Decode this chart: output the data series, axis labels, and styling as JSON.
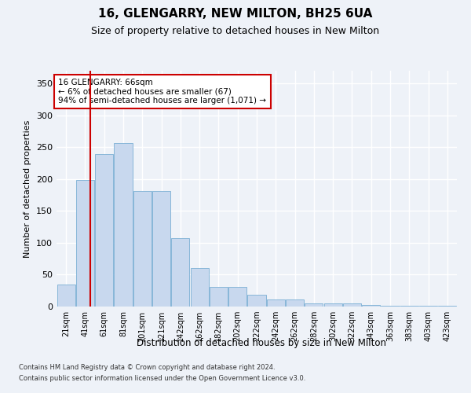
{
  "title1": "16, GLENGARRY, NEW MILTON, BH25 6UA",
  "title2": "Size of property relative to detached houses in New Milton",
  "xlabel": "Distribution of detached houses by size in New Milton",
  "ylabel": "Number of detached properties",
  "categories": [
    "21sqm",
    "41sqm",
    "61sqm",
    "81sqm",
    "101sqm",
    "121sqm",
    "142sqm",
    "162sqm",
    "182sqm",
    "202sqm",
    "222sqm",
    "242sqm",
    "262sqm",
    "282sqm",
    "302sqm",
    "322sqm",
    "343sqm",
    "363sqm",
    "383sqm",
    "403sqm",
    "423sqm"
  ],
  "values": [
    35,
    199,
    239,
    257,
    181,
    181,
    107,
    60,
    31,
    31,
    18,
    11,
    11,
    5,
    5,
    5,
    3,
    1,
    1,
    1,
    1
  ],
  "bar_color": "#c8d8ee",
  "bar_edge_color": "#7aafd4",
  "vline_x": 1.25,
  "vline_color": "#cc0000",
  "annotation_text": "16 GLENGARRY: 66sqm\n← 6% of detached houses are smaller (67)\n94% of semi-detached houses are larger (1,071) →",
  "annotation_box_color": "#ffffff",
  "annotation_box_edge": "#cc0000",
  "ylim": [
    0,
    370
  ],
  "yticks": [
    0,
    50,
    100,
    150,
    200,
    250,
    300,
    350
  ],
  "footer1": "Contains HM Land Registry data © Crown copyright and database right 2024.",
  "footer2": "Contains public sector information licensed under the Open Government Licence v3.0.",
  "bg_color": "#eef2f8",
  "plot_bg_color": "#eef2f8",
  "grid_color": "#ffffff",
  "title1_fontsize": 11,
  "title2_fontsize": 9,
  "annot_fontsize": 7.5
}
